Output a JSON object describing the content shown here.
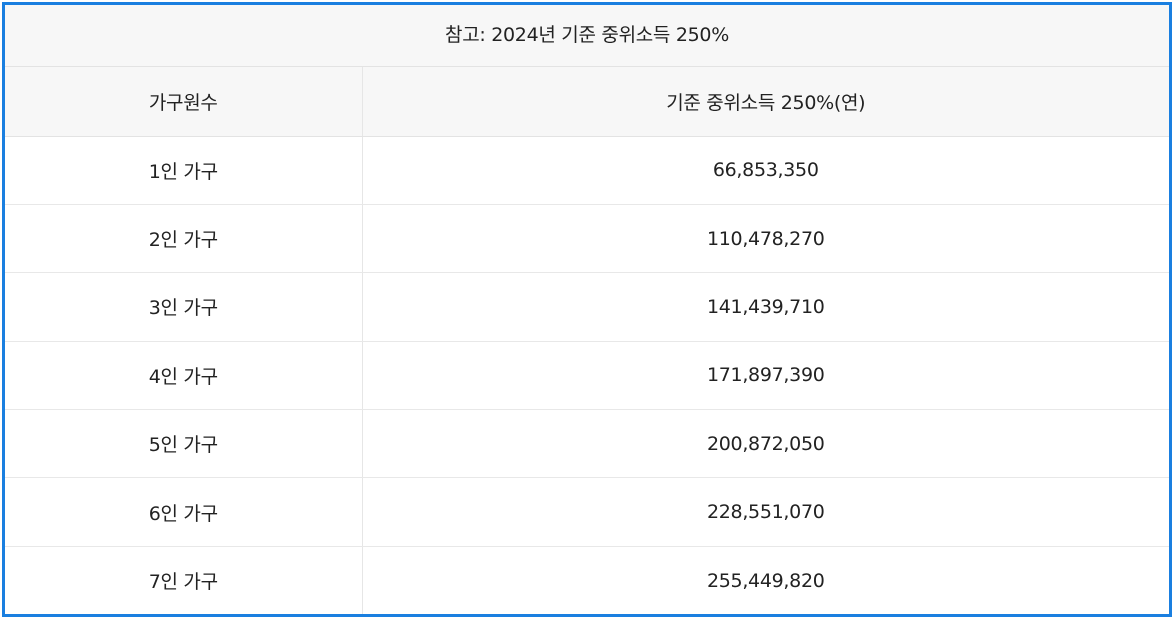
{
  "caption": "참고: 2024년 기준 중위소득 250%",
  "table": {
    "headers": [
      "가구원수",
      "기준 중위소득 250%(연)"
    ],
    "rows": [
      {
        "household": "1인 가구",
        "income": "66,853,350"
      },
      {
        "household": "2인 가구",
        "income": "110,478,270"
      },
      {
        "household": "3인 가구",
        "income": "141,439,710"
      },
      {
        "household": "4인 가구",
        "income": "171,897,390"
      },
      {
        "household": "5인 가구",
        "income": "200,872,050"
      },
      {
        "household": "6인 가구",
        "income": "228,551,070"
      },
      {
        "household": "7인 가구",
        "income": "255,449,820"
      }
    ]
  },
  "colors": {
    "frame_border": "#1a7fe0",
    "header_background": "#f7f7f7",
    "text": "#222222"
  }
}
